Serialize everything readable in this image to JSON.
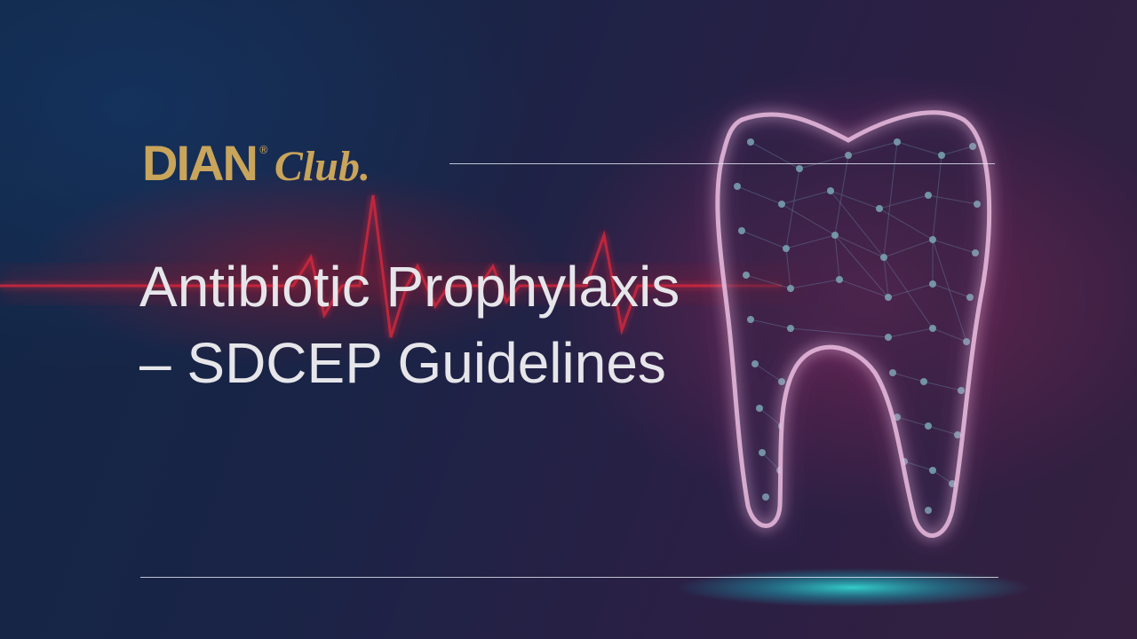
{
  "logo": {
    "primary": "DIAN",
    "registered": "®",
    "secondary": "Club."
  },
  "title": {
    "line1": "Antibiotic Prophylaxis",
    "line2": "– SDCEP Guidelines"
  },
  "icons": {
    "tooth": "tooth-icon",
    "heartbeat": "heartbeat-line-icon"
  },
  "colors": {
    "logo_gold": "#c9a45b",
    "title_text": "#e6e6ea",
    "tooth_glow": "#e08ad0",
    "node_teal": "#7fb7c0",
    "pulse_red": "#d8283c",
    "base_glow": "#2fd6d0"
  }
}
